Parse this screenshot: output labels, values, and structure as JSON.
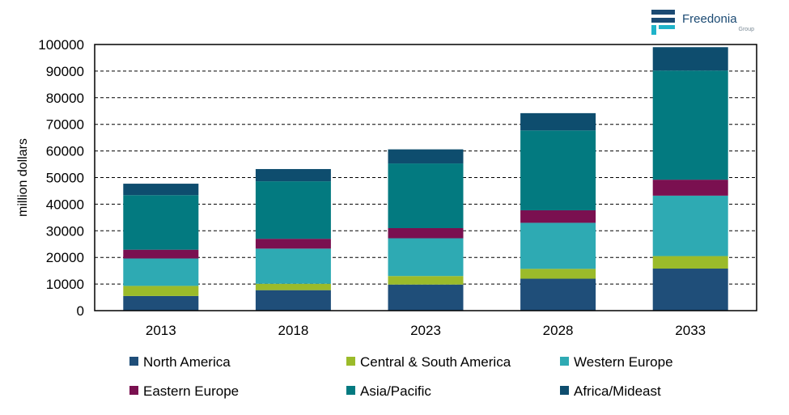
{
  "brand": {
    "name": "Freedonia",
    "sub": "Group",
    "colors": {
      "navy": "#1b4a73",
      "teal": "#1fb3c9"
    }
  },
  "chart_data": {
    "type": "bar",
    "stacked": true,
    "title": "",
    "xlabel": "",
    "ylabel": "million dollars",
    "categories": [
      "2013",
      "2018",
      "2023",
      "2028",
      "2033"
    ],
    "ylim": [
      0,
      100000
    ],
    "yticks": [
      0,
      10000,
      20000,
      30000,
      40000,
      50000,
      60000,
      70000,
      80000,
      90000,
      100000
    ],
    "grid": "horizontal dashed",
    "legend_position": "bottom",
    "series": [
      {
        "name": "North America",
        "color": "#1f4e79",
        "values": [
          5500,
          7700,
          9800,
          12000,
          15800
        ]
      },
      {
        "name": "Central & South America",
        "color": "#9bbb2a",
        "values": [
          3800,
          2400,
          3200,
          3700,
          4700
        ]
      },
      {
        "name": "Western Europe",
        "color": "#2eaab3",
        "values": [
          10300,
          13200,
          14200,
          17300,
          22700
        ]
      },
      {
        "name": "Eastern Europe",
        "color": "#7a1050",
        "values": [
          3300,
          3700,
          3800,
          4700,
          6000
        ]
      },
      {
        "name": "Asia/Pacific",
        "color": "#037a80",
        "values": [
          20500,
          21600,
          24300,
          30000,
          41000
        ]
      },
      {
        "name": "Africa/Mideast",
        "color": "#0e4d6e",
        "values": [
          4300,
          4600,
          5300,
          6500,
          8800
        ]
      }
    ]
  }
}
